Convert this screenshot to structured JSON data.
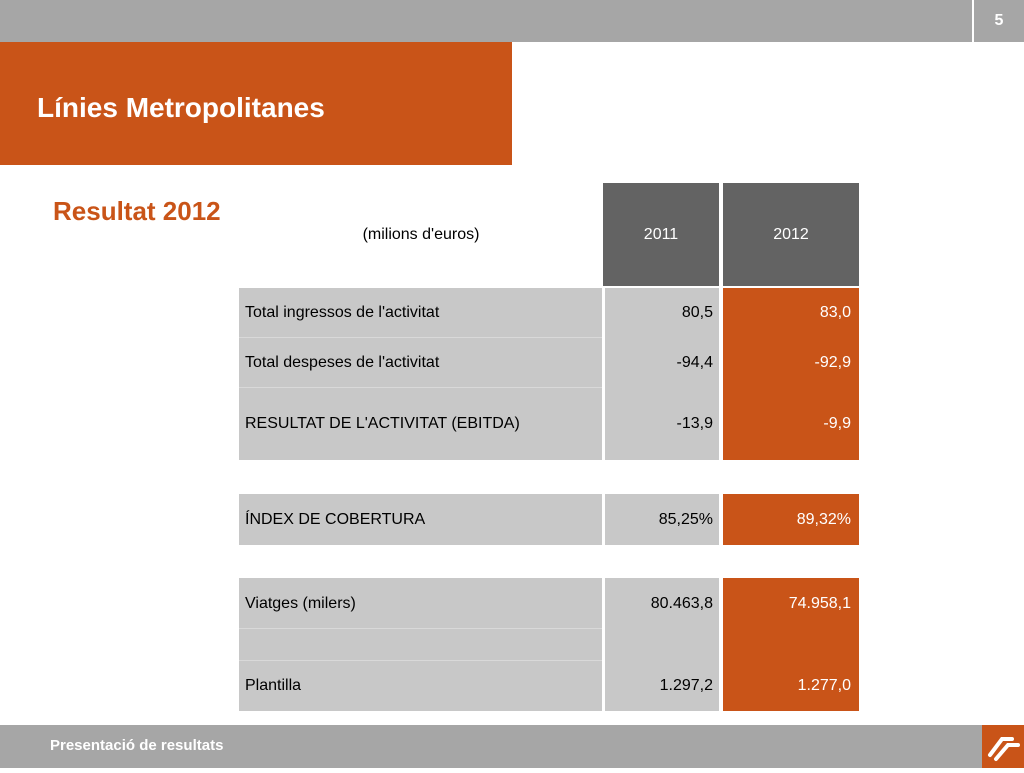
{
  "page_number": "5",
  "title": "Línies Metropolitanes",
  "subtitle": "Resultat 2012",
  "table": {
    "units_label": "(milions d'euros)",
    "years": [
      "2011",
      "2012"
    ],
    "rows": [
      {
        "label": "Total ingressos de l'activitat",
        "v2011": "80,5",
        "v2012": "83,0"
      },
      {
        "label": "Total despeses de l'activitat",
        "v2011": "-94,4",
        "v2012": "-92,9"
      },
      {
        "label": "RESULTAT DE L'ACTIVITAT (EBITDA)",
        "v2011": "-13,9",
        "v2012": "-9,9"
      },
      {
        "label": "ÍNDEX DE COBERTURA",
        "v2011": "85,25%",
        "v2012": "89,32%"
      },
      {
        "label": "Viatges (milers)",
        "v2011": "80.463,8",
        "v2012": "74.958,1"
      },
      {
        "label": "",
        "v2011": "",
        "v2012": ""
      },
      {
        "label": "Plantilla",
        "v2011": "1.297,2",
        "v2012": "1.277,0"
      }
    ]
  },
  "footer": "Presentació de resultats",
  "icons": {
    "logo": "company-logo-icon"
  },
  "colors": {
    "accent": "#c95418",
    "header_gray": "#636363",
    "bar_gray": "#a6a6a6",
    "cell_gray": "#c8c8c8"
  }
}
